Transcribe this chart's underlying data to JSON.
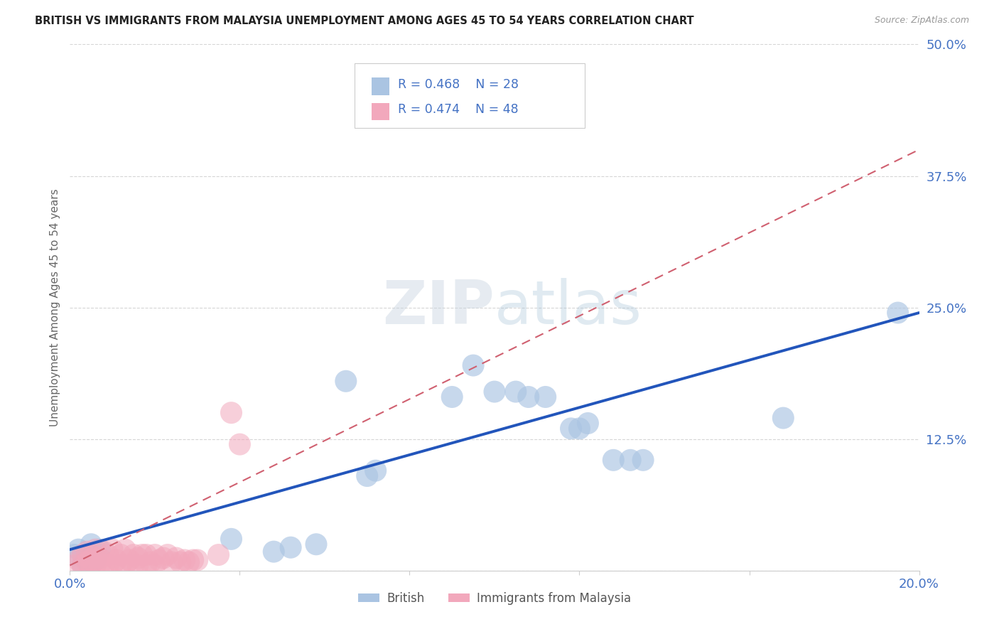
{
  "title": "BRITISH VS IMMIGRANTS FROM MALAYSIA UNEMPLOYMENT AMONG AGES 45 TO 54 YEARS CORRELATION CHART",
  "source": "Source: ZipAtlas.com",
  "ylabel": "Unemployment Among Ages 45 to 54 years",
  "xlim": [
    0.0,
    0.2
  ],
  "ylim": [
    0.0,
    0.5
  ],
  "xtick_positions": [
    0.0,
    0.04,
    0.08,
    0.12,
    0.16,
    0.2
  ],
  "ytick_positions": [
    0.0,
    0.125,
    0.25,
    0.375,
    0.5
  ],
  "british_R": "0.468",
  "british_N": "28",
  "malaysia_R": "0.474",
  "malaysia_N": "48",
  "legend_label_british": "British",
  "legend_label_malaysia": "Immigrants from Malaysia",
  "british_color": "#aac4e2",
  "malaysia_color": "#f2a8bc",
  "british_line_color": "#2255bb",
  "malaysia_line_color": "#d06070",
  "watermark_color": "#c8d8e8",
  "title_color": "#222222",
  "tick_label_color": "#4472c4",
  "british_x": [
    0.001,
    0.002,
    0.003,
    0.004,
    0.005,
    0.006,
    0.007,
    0.038,
    0.048,
    0.052,
    0.058,
    0.065,
    0.07,
    0.072,
    0.09,
    0.095,
    0.1,
    0.105,
    0.108,
    0.112,
    0.118,
    0.12,
    0.122,
    0.128,
    0.132,
    0.135,
    0.168,
    0.195
  ],
  "british_y": [
    0.015,
    0.02,
    0.005,
    0.01,
    0.025,
    0.01,
    0.02,
    0.03,
    0.018,
    0.022,
    0.025,
    0.18,
    0.09,
    0.095,
    0.165,
    0.195,
    0.17,
    0.17,
    0.165,
    0.165,
    0.135,
    0.135,
    0.14,
    0.105,
    0.105,
    0.105,
    0.145,
    0.245
  ],
  "malaysia_x": [
    0.001,
    0.002,
    0.003,
    0.003,
    0.004,
    0.004,
    0.005,
    0.005,
    0.005,
    0.006,
    0.006,
    0.007,
    0.007,
    0.008,
    0.008,
    0.009,
    0.009,
    0.01,
    0.01,
    0.011,
    0.012,
    0.012,
    0.013,
    0.013,
    0.014,
    0.015,
    0.015,
    0.016,
    0.016,
    0.017,
    0.018,
    0.018,
    0.019,
    0.02,
    0.02,
    0.021,
    0.022,
    0.023,
    0.024,
    0.025,
    0.026,
    0.027,
    0.028,
    0.029,
    0.03,
    0.035,
    0.038,
    0.04
  ],
  "malaysia_y": [
    0.005,
    0.01,
    0.005,
    0.015,
    0.008,
    0.018,
    0.005,
    0.01,
    0.015,
    0.005,
    0.02,
    0.005,
    0.012,
    0.005,
    0.018,
    0.005,
    0.015,
    0.005,
    0.02,
    0.01,
    0.005,
    0.015,
    0.005,
    0.02,
    0.01,
    0.005,
    0.015,
    0.005,
    0.012,
    0.015,
    0.005,
    0.015,
    0.008,
    0.005,
    0.015,
    0.01,
    0.012,
    0.015,
    0.008,
    0.012,
    0.008,
    0.01,
    0.008,
    0.01,
    0.01,
    0.015,
    0.15,
    0.12
  ],
  "british_line_x": [
    0.0,
    0.2
  ],
  "british_line_y": [
    0.02,
    0.245
  ],
  "malaysia_line_x": [
    0.0,
    0.2
  ],
  "malaysia_line_y": [
    0.005,
    0.4
  ]
}
